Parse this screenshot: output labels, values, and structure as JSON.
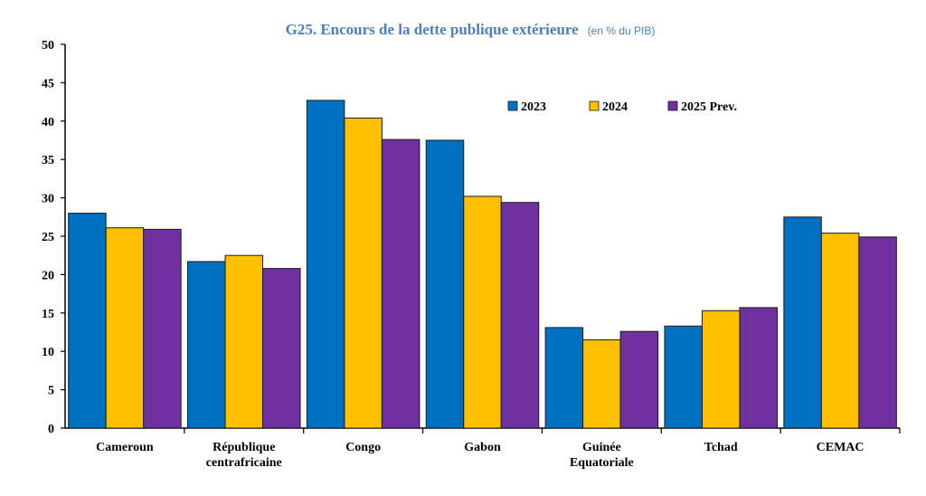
{
  "chart_data": {
    "type": "bar",
    "title": "G25. Encours de la dette publique extérieure",
    "subtitle": "(en % du PIB)",
    "xlabel": "",
    "ylabel": "",
    "ylim": [
      0,
      50
    ],
    "yticks": [
      0,
      5,
      10,
      15,
      20,
      25,
      30,
      35,
      40,
      45,
      50
    ],
    "grid": false,
    "legend_position": "top-right",
    "categories": [
      [
        "Cameroun"
      ],
      [
        "République",
        "centrafricaine"
      ],
      [
        "Congo"
      ],
      [
        "Gabon"
      ],
      [
        "Guinée",
        "Equatoriale"
      ],
      [
        "Tchad"
      ],
      [
        "CEMAC"
      ]
    ],
    "series": [
      {
        "name": "2023",
        "color": "#0070c0",
        "values": [
          28.0,
          21.7,
          42.7,
          37.5,
          13.1,
          13.3,
          27.5
        ]
      },
      {
        "name": "2024",
        "color": "#ffc000",
        "values": [
          26.1,
          22.5,
          40.4,
          30.2,
          11.5,
          15.3,
          25.4
        ]
      },
      {
        "name": "2025 Prev.",
        "color": "#7030a0",
        "values": [
          25.9,
          20.8,
          37.6,
          29.4,
          12.6,
          15.7,
          24.9
        ]
      }
    ]
  }
}
